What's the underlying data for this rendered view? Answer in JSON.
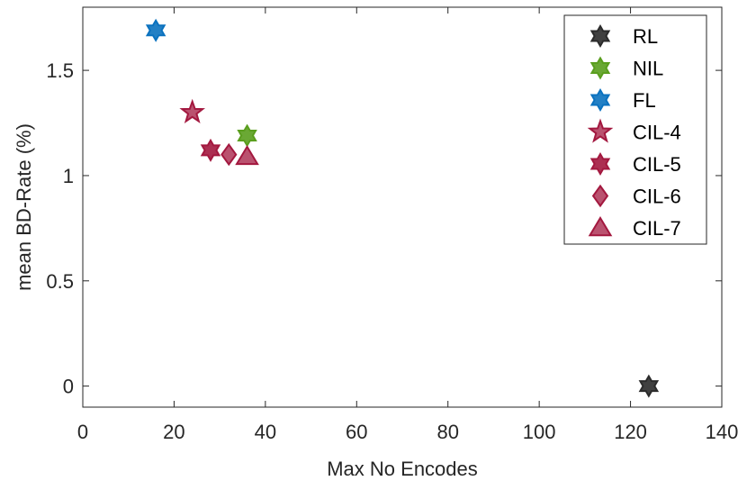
{
  "chart_data": {
    "type": "scatter",
    "title": "",
    "xlabel": "Max No Encodes",
    "ylabel": "mean BD-Rate (%)",
    "xlim": [
      0,
      140
    ],
    "ylim": [
      -0.1,
      1.8
    ],
    "xticks": [
      0,
      20,
      40,
      60,
      80,
      100,
      120,
      140
    ],
    "xtick_labels": [
      "0",
      "20",
      "40",
      "60",
      "80",
      "100",
      "120",
      "140"
    ],
    "yticks": [
      0,
      0.5,
      1,
      1.5
    ],
    "ytick_labels": [
      "0",
      "0.5",
      "1",
      "1.5"
    ],
    "grid": false,
    "legend_position": "top-right",
    "series": [
      {
        "name": "RL",
        "marker": "hexagram",
        "color": "#2b2b2b",
        "x": [
          124
        ],
        "y": [
          0.0
        ]
      },
      {
        "name": "NIL",
        "marker": "hexagram",
        "color": "#5a9e1e",
        "x": [
          36
        ],
        "y": [
          1.19
        ]
      },
      {
        "name": "FL",
        "marker": "hexagram",
        "color": "#0b72bf",
        "x": [
          16
        ],
        "y": [
          1.69
        ]
      },
      {
        "name": "CIL-4",
        "marker": "pentagram",
        "color": "#a3183f",
        "x": [
          24
        ],
        "y": [
          1.3
        ]
      },
      {
        "name": "CIL-5",
        "marker": "hexagram",
        "color": "#a3183f",
        "x": [
          28
        ],
        "y": [
          1.12
        ]
      },
      {
        "name": "CIL-6",
        "marker": "diamond",
        "color": "#a3183f",
        "x": [
          32
        ],
        "y": [
          1.1
        ]
      },
      {
        "name": "CIL-7",
        "marker": "triangle",
        "color": "#a3183f",
        "x": [
          36
        ],
        "y": [
          1.09
        ]
      }
    ]
  }
}
